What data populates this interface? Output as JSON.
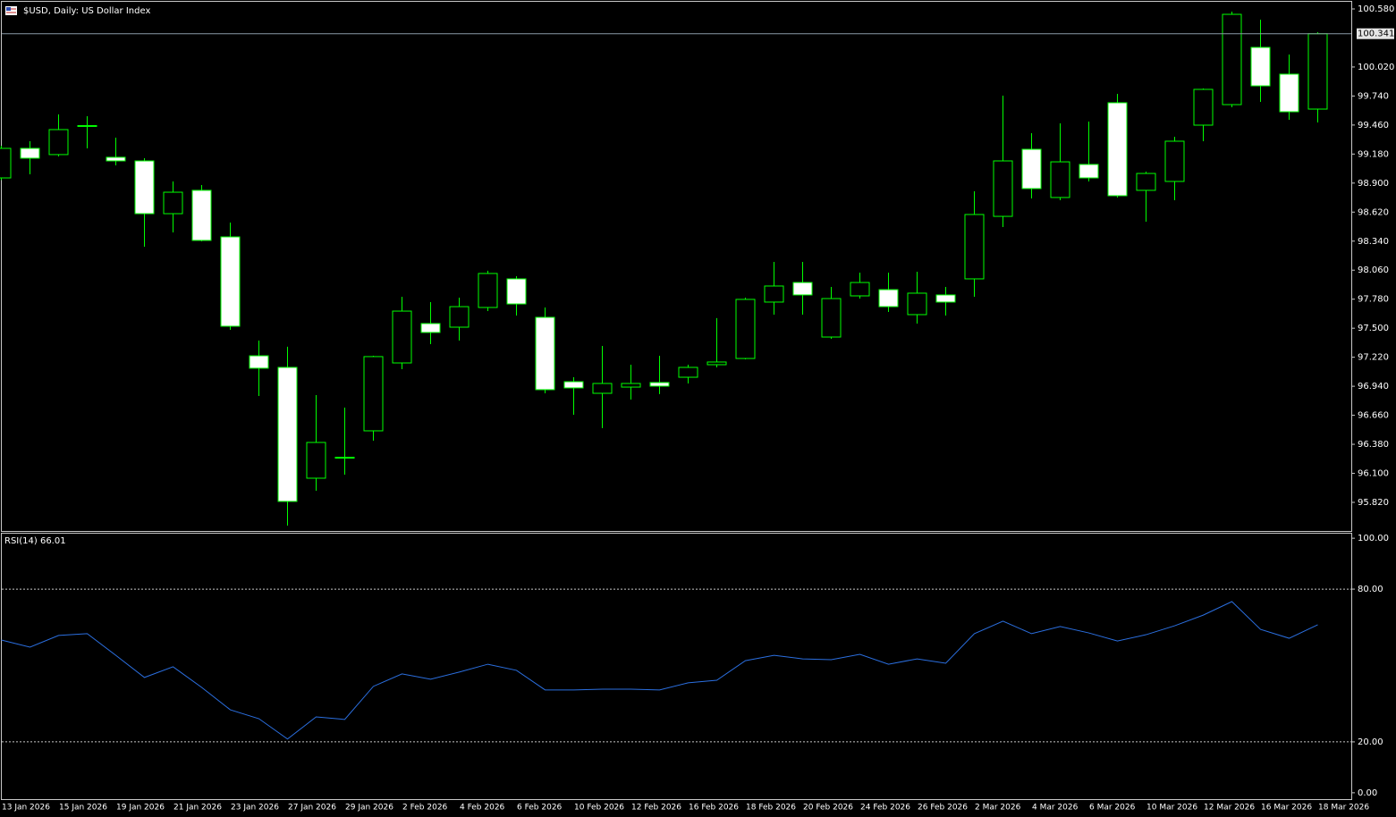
{
  "chart_data": [
    {
      "type": "candlestick",
      "title": "$USD, Daily:  US Dollar Index",
      "categories": [
        "13 Jan 2026",
        null,
        "15 Jan 2026",
        null,
        "19 Jan 2026",
        null,
        "21 Jan 2026",
        null,
        "23 Jan 2026",
        null,
        "27 Jan 2026",
        null,
        "29 Jan 2026",
        null,
        "2 Feb 2026",
        null,
        "4 Feb 2026",
        null,
        "6 Feb 2026",
        null,
        "10 Feb 2026",
        null,
        "12 Feb 2026",
        null,
        "16 Feb 2026",
        null,
        "18 Feb 2026",
        null,
        "20 Feb 2026",
        null,
        "24 Feb 2026",
        null,
        "26 Feb 2026",
        null,
        "2 Mar 2026",
        null,
        "4 Mar 2026",
        null,
        "6 Mar 2026",
        null,
        "10 Mar 2026",
        null,
        "12 Mar 2026",
        null,
        "16 Mar 2026",
        null,
        "18 Mar 2026"
      ],
      "open": [
        98.95,
        99.235,
        99.175,
        99.455,
        99.149,
        99.114,
        98.605,
        98.83,
        98.381,
        97.234,
        97.122,
        96.053,
        96.25,
        96.51,
        97.165,
        97.545,
        97.51,
        97.7,
        97.976,
        97.605,
        96.984,
        96.872,
        96.932,
        96.976,
        97.027,
        97.148,
        97.208,
        97.752,
        97.941,
        97.415,
        97.812,
        97.872,
        97.631,
        97.821,
        97.976,
        98.579,
        99.226,
        98.761,
        99.08,
        99.675,
        98.83,
        98.916,
        99.459,
        99.657,
        100.209,
        99.951,
        99.614
      ],
      "high": [
        99.26,
        99.304,
        99.562,
        99.545,
        99.338,
        99.14,
        98.916,
        98.881,
        98.519,
        97.381,
        97.321,
        96.855,
        96.734,
        97.234,
        97.803,
        97.752,
        97.795,
        98.054,
        98.002,
        97.7,
        97.027,
        97.329,
        97.148,
        97.234,
        97.148,
        97.597,
        97.795,
        98.14,
        98.14,
        97.898,
        98.036,
        98.036,
        98.045,
        97.898,
        98.821,
        99.744,
        99.381,
        99.476,
        99.494,
        99.761,
        99.011,
        99.347,
        99.813,
        100.554,
        100.477,
        100.14,
        100.356
      ],
      "low": [
        98.93,
        98.985,
        99.157,
        99.235,
        99.071,
        98.286,
        98.424,
        98.338,
        97.484,
        96.846,
        95.596,
        95.932,
        96.087,
        96.415,
        97.105,
        97.346,
        97.381,
        97.665,
        97.622,
        96.872,
        96.665,
        96.536,
        96.812,
        96.864,
        96.967,
        97.122,
        97.2,
        97.631,
        97.631,
        97.398,
        97.786,
        97.657,
        97.545,
        97.622,
        97.803,
        98.476,
        98.752,
        98.735,
        98.916,
        98.761,
        98.528,
        98.735,
        99.304,
        99.631,
        99.683,
        99.511,
        99.485
      ],
      "close": [
        99.235,
        99.14,
        99.416,
        99.45,
        99.114,
        98.605,
        98.812,
        98.347,
        97.519,
        97.114,
        95.829,
        96.398,
        96.255,
        97.226,
        97.665,
        97.459,
        97.708,
        98.028,
        97.734,
        96.907,
        96.924,
        96.967,
        96.967,
        96.941,
        97.122,
        97.174,
        97.778,
        97.907,
        97.821,
        97.786,
        97.941,
        97.708,
        97.838,
        97.752,
        98.597,
        99.114,
        98.847,
        99.105,
        98.95,
        98.778,
        98.993,
        99.304,
        99.804,
        100.528,
        99.838,
        99.588,
        100.341
      ],
      "up_color": "#000000",
      "down_color": "#ffffff",
      "outline_color": "#00ff00",
      "last_price": 100.341,
      "ylim": [
        95.544,
        100.649
      ],
      "yticks": [
        {
          "value": 100.58,
          "label": "100.580"
        },
        {
          "value": 100.02,
          "label": "100.020"
        },
        {
          "value": 99.74,
          "label": "99.740"
        },
        {
          "value": 99.46,
          "label": "99.460"
        },
        {
          "value": 99.18,
          "label": "99.180"
        },
        {
          "value": 98.9,
          "label": "98.900"
        },
        {
          "value": 98.62,
          "label": "98.620"
        },
        {
          "value": 98.34,
          "label": "98.340"
        },
        {
          "value": 98.06,
          "label": "98.060"
        },
        {
          "value": 97.78,
          "label": "97.780"
        },
        {
          "value": 97.5,
          "label": "97.500"
        },
        {
          "value": 97.22,
          "label": "97.220"
        },
        {
          "value": 96.94,
          "label": "96.940"
        },
        {
          "value": 96.66,
          "label": "96.660"
        },
        {
          "value": 96.38,
          "label": "96.380"
        },
        {
          "value": 96.1,
          "label": "96.100"
        },
        {
          "value": 95.82,
          "label": "95.820"
        }
      ]
    },
    {
      "type": "line",
      "title": "RSI(14) 66.01",
      "series": [
        {
          "name": "RSI(14)",
          "color": "#2b6fe0",
          "values": [
            60.0,
            57.2,
            61.8,
            62.5,
            54.0,
            45.3,
            49.5,
            41.4,
            32.6,
            29.1,
            21.1,
            29.8,
            28.8,
            41.8,
            46.7,
            44.6,
            47.4,
            50.5,
            48.1,
            40.4,
            40.4,
            40.7,
            40.7,
            40.4,
            43.2,
            44.2,
            51.9,
            54.0,
            52.6,
            52.3,
            54.4,
            50.5,
            52.6,
            50.9,
            62.5,
            67.4,
            62.5,
            65.3,
            62.8,
            59.6,
            62.1,
            65.6,
            69.8,
            75.1,
            64.2,
            60.7,
            66.01
          ]
        }
      ],
      "ylim": [
        -2.5,
        101.8
      ],
      "yticks": [
        {
          "value": 100,
          "label": "100.00"
        },
        {
          "value": 80,
          "label": "80.00"
        },
        {
          "value": 20,
          "label": "20.00"
        },
        {
          "value": 0,
          "label": "0.00"
        }
      ],
      "levels": [
        80,
        20
      ]
    }
  ]
}
